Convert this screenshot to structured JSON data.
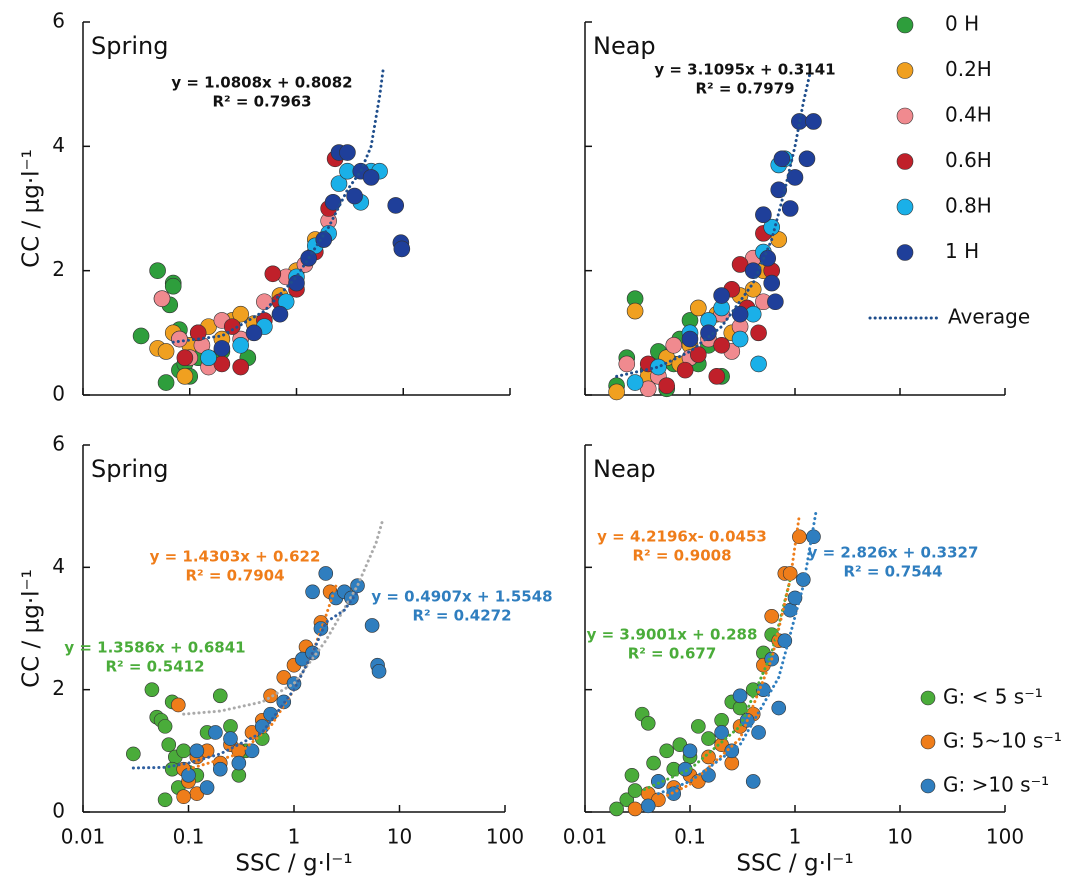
{
  "chart_data": [
    {
      "type": "scatter",
      "title": "Spring",
      "ylabel": "CC / μg·l⁻¹",
      "xscale": "log",
      "xlim": [
        0.01,
        100
      ],
      "ylim": [
        0,
        6
      ],
      "xticks": [
        0.01,
        0.1,
        1,
        10,
        100
      ],
      "yticks": [
        0,
        2,
        4,
        6
      ],
      "xtick_labels": false,
      "ytick_labels": true,
      "legend": false,
      "series": [
        {
          "color": "#2e9e3c",
          "x": [
            0.035,
            0.05,
            0.055,
            0.07,
            0.065,
            0.06,
            0.08,
            0.09,
            0.1,
            0.07,
            0.12,
            0.2,
            0.35,
            0.08
          ],
          "values": [
            0.95,
            2.0,
            1.55,
            1.8,
            1.45,
            0.2,
            0.4,
            0.5,
            0.3,
            1.75,
            0.6,
            0.7,
            0.6,
            1.05
          ]
        },
        {
          "color": "#f0a020",
          "x": [
            0.05,
            0.06,
            0.07,
            0.08,
            0.1,
            0.12,
            0.15,
            0.2,
            0.25,
            0.3,
            0.4,
            0.7,
            1.0,
            1.5,
            0.09
          ],
          "values": [
            0.75,
            0.7,
            1.0,
            0.9,
            0.8,
            1.0,
            1.1,
            0.9,
            1.2,
            1.3,
            1.15,
            1.6,
            2.0,
            2.5,
            0.3
          ]
        },
        {
          "color": "#f08a8f",
          "x": [
            0.055,
            0.08,
            0.1,
            0.13,
            0.2,
            0.3,
            0.5,
            0.8,
            1.2,
            2,
            0.15
          ],
          "values": [
            1.55,
            0.9,
            0.6,
            0.8,
            1.2,
            0.9,
            1.5,
            1.9,
            2.1,
            2.8,
            0.45
          ]
        },
        {
          "color": "#c0202a",
          "x": [
            0.09,
            0.12,
            0.2,
            0.3,
            0.5,
            0.7,
            0.6,
            1,
            1.5,
            2,
            2.3,
            0.25
          ],
          "values": [
            0.6,
            1.0,
            0.5,
            0.45,
            1.2,
            1.5,
            1.95,
            1.7,
            2.3,
            3.0,
            3.8,
            1.1
          ]
        },
        {
          "color": "#1ab0e8",
          "x": [
            0.15,
            0.3,
            0.5,
            0.8,
            1,
            1.5,
            2,
            2.5,
            3,
            4,
            5,
            6
          ],
          "values": [
            0.6,
            0.8,
            1.1,
            1.5,
            1.9,
            2.4,
            2.6,
            3.4,
            3.6,
            3.1,
            3.6,
            3.6
          ]
        },
        {
          "color": "#1f3f9a",
          "x": [
            0.2,
            0.4,
            0.7,
            1.0,
            1.3,
            1.8,
            2.2,
            2.5,
            3,
            3.5,
            4,
            5,
            8.5,
            9.5,
            9.7
          ],
          "values": [
            0.75,
            1.0,
            1.3,
            1.8,
            2.2,
            2.5,
            3.1,
            3.9,
            3.9,
            3.2,
            3.6,
            3.5,
            3.05,
            2.45,
            2.35
          ]
        }
      ],
      "fits": [
        {
          "color": "#1f4e8c",
          "text_color": "#111111",
          "equation": "y = 1.0808x + 0.8082",
          "r2": "R² = 0.7963",
          "x": [
            0.07,
            0.2,
            0.5,
            1,
            2,
            3,
            4,
            5,
            6,
            6.5
          ],
          "values": [
            0.85,
            0.95,
            1.35,
            1.9,
            2.7,
            3.3,
            3.6,
            4.0,
            4.8,
            5.25
          ]
        }
      ]
    },
    {
      "type": "scatter",
      "title": "Neap",
      "xscale": "log",
      "xlim": [
        0.01,
        100
      ],
      "ylim": [
        0,
        6
      ],
      "xticks": [
        0.01,
        0.1,
        1,
        10,
        100
      ],
      "yticks": [
        0,
        2,
        4,
        6
      ],
      "xtick_labels": false,
      "ytick_labels": false,
      "legend": true,
      "series": [
        {
          "name": "0 H",
          "color": "#2e9e3c",
          "x": [
            0.03,
            0.025,
            0.02,
            0.04,
            0.05,
            0.07,
            0.08,
            0.1,
            0.12,
            0.15,
            0.06,
            0.2
          ],
          "values": [
            1.55,
            0.6,
            0.15,
            0.4,
            0.7,
            0.5,
            0.9,
            1.2,
            0.5,
            0.8,
            0.1,
            0.3
          ]
        },
        {
          "name": "0.2H",
          "color": "#f0a020",
          "x": [
            0.02,
            0.03,
            0.04,
            0.06,
            0.08,
            0.1,
            0.12,
            0.18,
            0.25,
            0.3,
            0.4,
            0.5,
            0.7
          ],
          "values": [
            0.05,
            1.35,
            0.3,
            0.6,
            0.5,
            0.8,
            1.4,
            1.3,
            1.0,
            1.6,
            1.7,
            2.0,
            2.5
          ]
        },
        {
          "name": "0.4H",
          "color": "#f08a8f",
          "x": [
            0.025,
            0.04,
            0.05,
            0.07,
            0.1,
            0.15,
            0.2,
            0.3,
            0.4,
            0.25,
            0.5
          ],
          "values": [
            0.5,
            0.1,
            0.3,
            0.8,
            0.6,
            0.9,
            1.3,
            1.1,
            2.2,
            0.7,
            1.5
          ]
        },
        {
          "name": "0.6H",
          "color": "#c0202a",
          "x": [
            0.04,
            0.06,
            0.09,
            0.12,
            0.2,
            0.25,
            0.3,
            0.35,
            0.45,
            0.5,
            0.6,
            0.18
          ],
          "values": [
            0.5,
            0.15,
            0.4,
            0.65,
            0.8,
            1.7,
            2.1,
            1.4,
            1.0,
            2.6,
            2.0,
            0.3
          ]
        },
        {
          "name": "0.8H",
          "color": "#1ab0e8",
          "x": [
            0.03,
            0.05,
            0.1,
            0.15,
            0.2,
            0.3,
            0.4,
            0.45,
            0.5,
            0.6,
            0.7,
            0.8
          ],
          "values": [
            0.2,
            0.45,
            1.0,
            1.2,
            1.4,
            0.9,
            1.3,
            0.5,
            2.3,
            2.7,
            3.7,
            3.8
          ]
        },
        {
          "name": "1 H",
          "color": "#1f3f9a",
          "x": [
            0.1,
            0.15,
            0.2,
            0.3,
            0.4,
            0.5,
            0.55,
            0.6,
            0.65,
            0.7,
            0.75,
            0.9,
            1.0,
            1.1,
            1.3,
            1.5
          ],
          "values": [
            0.9,
            1.0,
            1.6,
            1.3,
            2.0,
            2.9,
            2.2,
            1.8,
            1.5,
            3.3,
            3.8,
            3.0,
            3.5,
            4.4,
            3.8,
            4.4
          ]
        }
      ],
      "fits": [
        {
          "name": "Average",
          "color": "#1f4e8c",
          "text_color": "#111111",
          "equation": "y = 3.1095x + 0.3141",
          "r2": "R² = 0.7979",
          "x": [
            0.02,
            0.05,
            0.1,
            0.2,
            0.4,
            0.6,
            0.8,
            1.0,
            1.2,
            1.4
          ],
          "values": [
            0.3,
            0.45,
            0.7,
            1.1,
            1.8,
            2.5,
            3.3,
            4.0,
            4.7,
            5.2
          ]
        }
      ]
    },
    {
      "type": "scatter",
      "title": "Spring",
      "ylabel": "CC / μg·l⁻¹",
      "xlabel": "SSC / g·l⁻¹",
      "xscale": "log",
      "xlim": [
        0.01,
        100
      ],
      "ylim": [
        0,
        6
      ],
      "xticks": [
        0.01,
        0.1,
        1,
        10,
        100
      ],
      "yticks": [
        0,
        2,
        4,
        6
      ],
      "xtick_labels": true,
      "ytick_labels": true,
      "legend": false,
      "series": [
        {
          "color": "#4aac3a",
          "x": [
            0.03,
            0.045,
            0.05,
            0.055,
            0.06,
            0.065,
            0.07,
            0.075,
            0.06,
            0.08,
            0.1,
            0.12,
            0.15,
            0.2,
            0.25,
            0.3,
            0.35,
            0.5,
            0.07,
            0.09
          ],
          "values": [
            0.95,
            2.0,
            1.55,
            1.5,
            1.4,
            1.1,
            1.8,
            0.9,
            0.2,
            0.4,
            0.65,
            0.6,
            1.3,
            1.9,
            1.4,
            0.6,
            1.0,
            1.2,
            0.7,
            1.0
          ]
        },
        {
          "color": "#ef7d1a",
          "x": [
            0.08,
            0.09,
            0.1,
            0.12,
            0.15,
            0.2,
            0.25,
            0.3,
            0.4,
            0.5,
            0.6,
            0.8,
            1.0,
            1.3,
            1.8,
            2.2,
            0.12,
            0.09
          ],
          "values": [
            1.75,
            0.7,
            0.5,
            0.9,
            1.0,
            0.8,
            1.1,
            1.0,
            1.3,
            1.5,
            1.9,
            2.2,
            2.4,
            2.7,
            3.1,
            3.6,
            0.3,
            0.25
          ]
        },
        {
          "color": "#2f7ebf",
          "x": [
            0.1,
            0.12,
            0.15,
            0.2,
            0.25,
            0.3,
            0.4,
            0.5,
            0.6,
            0.8,
            1.0,
            1.2,
            1.5,
            1.5,
            1.8,
            2.0,
            2.5,
            3,
            3.5,
            4,
            5.5,
            6.2,
            6.4,
            0.18
          ],
          "values": [
            0.6,
            1.0,
            0.4,
            0.7,
            1.2,
            0.8,
            1.0,
            1.4,
            1.6,
            1.8,
            2.1,
            2.5,
            2.6,
            3.6,
            3.0,
            3.9,
            3.5,
            3.6,
            3.5,
            3.7,
            3.05,
            2.4,
            2.3,
            1.3
          ]
        }
      ],
      "fits": [
        {
          "color": "#aaaaaa",
          "text_color": "#4aac3a",
          "equation": "y = 1.3586x + 0.6841",
          "r2": "R² = 0.5412",
          "x": [
            0.09,
            0.2,
            0.5,
            1,
            2,
            4,
            6,
            7
          ],
          "values": [
            1.6,
            1.65,
            1.8,
            2.1,
            2.8,
            3.7,
            4.4,
            4.8
          ]
        },
        {
          "color": "#ef7d1a",
          "text_color": "#ef7d1a",
          "equation": "y = 1.4303x + 0.622",
          "r2": "R² = 0.7904",
          "x": [
            0.1,
            0.3,
            0.6,
            1,
            1.5,
            2,
            2.5
          ],
          "values": [
            0.7,
            0.95,
            1.4,
            2.0,
            2.6,
            3.2,
            3.7
          ]
        },
        {
          "color": "#2f5fa0",
          "text_color": "#2f7ebf",
          "equation": "y = 0.4907x + 1.5548",
          "r2": "R² = 0.4272",
          "x": [
            0.03,
            0.06,
            0.1,
            0.2,
            0.5,
            1,
            1.5,
            2,
            3,
            4
          ],
          "values": [
            0.72,
            0.73,
            0.8,
            0.95,
            1.3,
            2.0,
            2.6,
            3.1,
            3.3,
            3.6
          ]
        }
      ]
    },
    {
      "type": "scatter",
      "title": "Neap",
      "xlabel": "SSC / g·l⁻¹",
      "xscale": "log",
      "xlim": [
        0.01,
        100
      ],
      "ylim": [
        0,
        6
      ],
      "xticks": [
        0.01,
        0.1,
        1,
        10,
        100
      ],
      "yticks": [
        0,
        2,
        4,
        6
      ],
      "xtick_labels": true,
      "ytick_labels": false,
      "legend": true,
      "series": [
        {
          "name": "G: < 5  s⁻¹",
          "color": "#4aac3a",
          "x": [
            0.025,
            0.028,
            0.03,
            0.035,
            0.04,
            0.045,
            0.05,
            0.06,
            0.07,
            0.08,
            0.1,
            0.12,
            0.15,
            0.2,
            0.25,
            0.3,
            0.4,
            0.5,
            0.6,
            0.02
          ],
          "values": [
            0.2,
            0.6,
            0.35,
            1.6,
            1.45,
            0.8,
            0.5,
            1.0,
            0.7,
            1.1,
            0.9,
            1.4,
            1.2,
            1.5,
            1.8,
            1.7,
            2.0,
            2.6,
            2.9,
            0.05
          ]
        },
        {
          "name": "G: 5~10 s⁻¹",
          "color": "#ef7d1a",
          "x": [
            0.03,
            0.04,
            0.05,
            0.07,
            0.1,
            0.12,
            0.15,
            0.2,
            0.25,
            0.3,
            0.4,
            0.5,
            0.6,
            0.7,
            0.8,
            0.9,
            1.1
          ],
          "values": [
            0.05,
            0.3,
            0.2,
            0.4,
            0.6,
            0.5,
            0.9,
            1.1,
            0.8,
            1.4,
            1.6,
            2.4,
            3.2,
            2.8,
            3.9,
            3.9,
            4.5
          ]
        },
        {
          "name": "G: >10 s⁻¹",
          "color": "#2f7ebf",
          "x": [
            0.04,
            0.05,
            0.07,
            0.09,
            0.1,
            0.15,
            0.2,
            0.25,
            0.3,
            0.35,
            0.4,
            0.45,
            0.5,
            0.6,
            0.7,
            0.8,
            0.9,
            1.0,
            1.2,
            1.5
          ],
          "values": [
            0.1,
            0.5,
            0.3,
            0.7,
            1.0,
            0.6,
            1.3,
            1.0,
            1.9,
            1.5,
            0.5,
            1.3,
            2.0,
            2.5,
            1.7,
            2.8,
            3.3,
            3.5,
            3.8,
            4.5
          ]
        }
      ],
      "fits": [
        {
          "color": "#4aac3a",
          "text_color": "#4aac3a",
          "equation": "y = 3.9001x + 0.288",
          "r2": "R² = 0.677",
          "x": [
            0.03,
            0.1,
            0.3,
            0.6,
            0.9
          ],
          "values": [
            0.3,
            0.7,
            1.4,
            2.6,
            3.8
          ]
        },
        {
          "color": "#ef7d1a",
          "text_color": "#ef7d1a",
          "equation": "y = 4.2196x- 0.0453",
          "r2": "R² = 0.9008",
          "x": [
            0.05,
            0.1,
            0.3,
            0.6,
            0.9,
            1.1
          ],
          "values": [
            0.2,
            0.45,
            1.2,
            2.5,
            3.8,
            4.85
          ]
        },
        {
          "color": "#2f7ebf",
          "text_color": "#2f7ebf",
          "equation": "y = 2.826x + 0.3327",
          "r2": "R² = 0.7544",
          "x": [
            0.05,
            0.1,
            0.3,
            0.7,
            1.2,
            1.6
          ],
          "values": [
            0.3,
            0.5,
            1.1,
            2.2,
            3.7,
            4.95
          ]
        }
      ]
    }
  ]
}
